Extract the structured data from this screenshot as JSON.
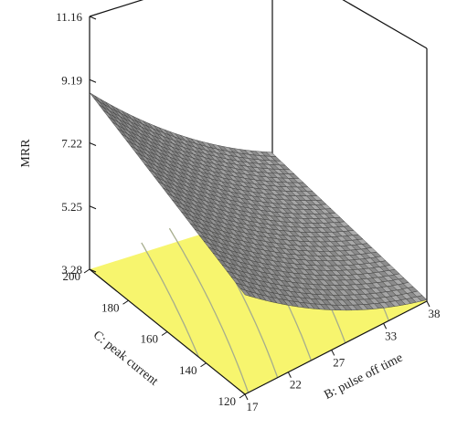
{
  "chart_data": {
    "type": "surface3d",
    "title": "",
    "zlabel": "MRR",
    "xlabel": "B: pulse off time",
    "ylabel": "C: peak current",
    "x_ticks": [
      "17",
      "22",
      "27",
      "33",
      "38"
    ],
    "x_range": [
      17,
      38
    ],
    "y_ticks": [
      "120",
      "140",
      "160",
      "180",
      "200"
    ],
    "y_range": [
      120,
      200
    ],
    "z_ticks": [
      "3.28",
      "5.25",
      "7.22",
      "9.19",
      "11.16"
    ],
    "z_range": [
      3.28,
      11.16
    ],
    "surface_corners": [
      {
        "x": 17,
        "y": 120,
        "z": 5.9
      },
      {
        "x": 17,
        "y": 200,
        "z": 8.3
      },
      {
        "x": 38,
        "y": 120,
        "z": 3.0
      },
      {
        "x": 38,
        "y": 200,
        "z": 3.7
      }
    ],
    "colors": {
      "floor": "#f7f56e",
      "contour": "#a6ad8d",
      "surface_dark": "#3a3a3a",
      "surface_light": "#d8d8d8",
      "frame": "#111111"
    }
  }
}
